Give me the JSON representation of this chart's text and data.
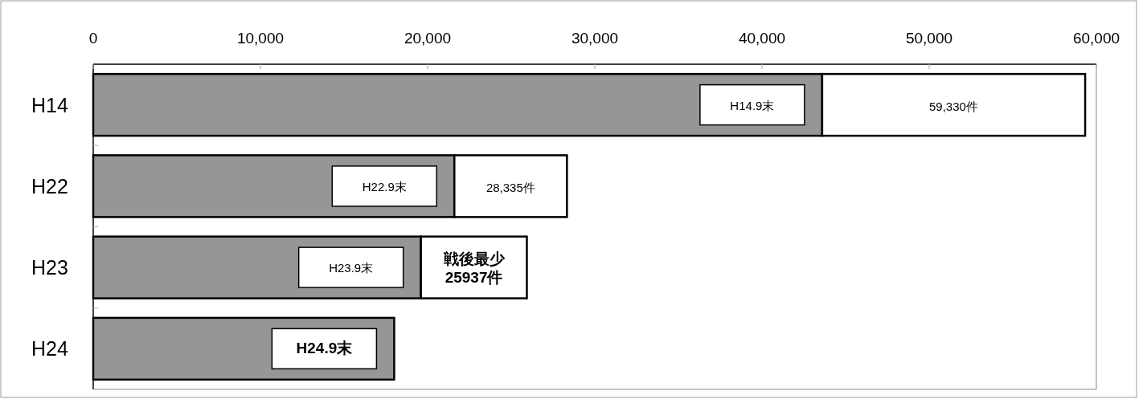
{
  "chart_data": {
    "type": "bar",
    "orientation": "horizontal",
    "stacked": true,
    "categories": [
      "H14",
      "H22",
      "H23",
      "H24"
    ],
    "series": [
      {
        "color": "#969696",
        "values": [
          43600,
          21600,
          19600,
          18000
        ],
        "value_labels": [
          "H14.9末",
          "H22.9末",
          "H23.9末",
          "H24.9末"
        ]
      },
      {
        "color": "#ffffff",
        "values": [
          15730,
          6735,
          6337,
          null
        ]
      }
    ],
    "totals": [
      "59,330件",
      "28,335件",
      "戦後最少\n25937件",
      null
    ],
    "xlim": [
      0,
      60000
    ],
    "xticks": [
      {
        "value": 0,
        "label": "0"
      },
      {
        "value": 10000,
        "label": "10,000"
      },
      {
        "value": 20000,
        "label": "20,000"
      },
      {
        "value": 30000,
        "label": "30,000"
      },
      {
        "value": 40000,
        "label": "40,000"
      },
      {
        "value": 50000,
        "label": "50,000"
      },
      {
        "value": 60000,
        "label": "60,000"
      }
    ]
  }
}
